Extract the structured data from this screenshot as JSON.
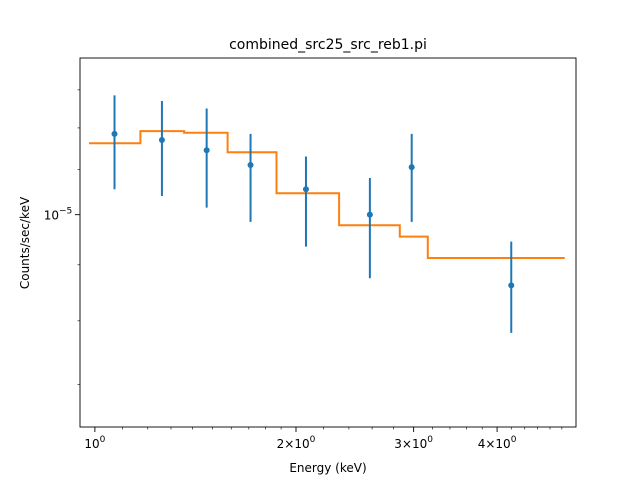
{
  "chart_data": {
    "type": "scatter",
    "title": "combined_src25_src_reb1.pi",
    "xlabel": "Energy (keV)",
    "ylabel": "Counts/sec/keV",
    "xscale": "log",
    "yscale": "log",
    "xlim": [
      0.95,
      5.25
    ],
    "ylim": [
      6.4e-06,
      1.39e-05
    ],
    "grid": false,
    "x_ticks": [
      {
        "value": 1,
        "label": "10^0"
      },
      {
        "value": 2,
        "label": "2x10^0"
      },
      {
        "value": 3,
        "label": "3x10^0"
      },
      {
        "value": 4,
        "label": "4x10^0"
      }
    ],
    "y_ticks": [
      {
        "value": 1e-05,
        "label": "10^-5"
      }
    ],
    "series": [
      {
        "kind": "data",
        "color": "#1f77b4",
        "points": [
          {
            "x": 1.07,
            "y": 1.185e-05,
            "ylo": 1.055e-05,
            "yhi": 1.285e-05
          },
          {
            "x": 1.26,
            "y": 1.17e-05,
            "ylo": 1.04e-05,
            "yhi": 1.27e-05
          },
          {
            "x": 1.47,
            "y": 1.145e-05,
            "ylo": 1.015e-05,
            "yhi": 1.25e-05
          },
          {
            "x": 1.71,
            "y": 1.11e-05,
            "ylo": 9.85e-06,
            "yhi": 1.185e-05
          },
          {
            "x": 2.07,
            "y": 1.055e-05,
            "ylo": 9.35e-06,
            "yhi": 1.13e-05
          },
          {
            "x": 2.58,
            "y": 1e-05,
            "ylo": 8.75e-06,
            "yhi": 1.08e-05
          },
          {
            "x": 2.98,
            "y": 1.105e-05,
            "ylo": 9.85e-06,
            "yhi": 1.185e-05
          },
          {
            "x": 4.2,
            "y": 8.62e-06,
            "ylo": 7.8e-06,
            "yhi": 9.45e-06
          }
        ]
      },
      {
        "kind": "model",
        "color": "#ff7f0e",
        "steps": [
          {
            "x0": 0.98,
            "x1": 1.17,
            "y": 1.162e-05
          },
          {
            "x0": 1.17,
            "x1": 1.36,
            "y": 1.192e-05
          },
          {
            "x0": 1.36,
            "x1": 1.58,
            "y": 1.188e-05
          },
          {
            "x0": 1.58,
            "x1": 1.87,
            "y": 1.14e-05
          },
          {
            "x0": 1.87,
            "x1": 2.32,
            "y": 1.046e-05
          },
          {
            "x0": 2.32,
            "x1": 2.86,
            "y": 9.78e-06
          },
          {
            "x0": 2.86,
            "x1": 3.15,
            "y": 9.55e-06
          },
          {
            "x0": 3.15,
            "x1": 5.05,
            "y": 9.13e-06
          }
        ]
      }
    ]
  }
}
